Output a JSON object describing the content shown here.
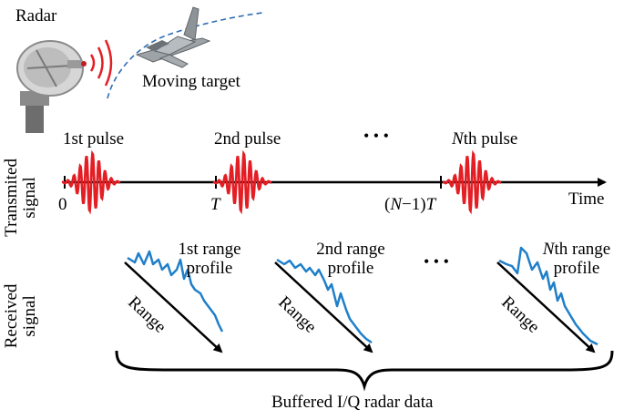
{
  "labels": {
    "radar": "Radar",
    "moving_target": "Moving target",
    "pulse1": "1st pulse",
    "pulse2": "2nd pulse",
    "ellipsis_pulses": "• • •",
    "pulseN_letter": "N",
    "pulseN_rest": "th pulse",
    "time": "Time",
    "tick_0": "0",
    "tick_T": "T",
    "tick_N_open": "(",
    "tick_N_letter": "N",
    "tick_N_rest": "−1)",
    "tick_N_T": "T",
    "transmitted_line1": "Transmited",
    "transmitted_line2": "signal",
    "received_line1": "Received",
    "received_line2": "signal",
    "profile1_line1": "1st range",
    "profile1_line2": "profile",
    "profile2_line1": "2nd range",
    "profile2_line2": "profile",
    "ellipsis_profiles": "• • •",
    "profileN_letter": "N",
    "profileN_rest": "th range",
    "profileN_line2": "profile",
    "range": "Range",
    "buffered": "Buffered I/Q radar data"
  },
  "colors": {
    "pulse": "#e31e24",
    "profile": "#1f7fc9",
    "axis": "#000000",
    "trajectory": "#2f6db3"
  },
  "icons": {
    "radar": "radar-dish-icon",
    "target": "fighter-jet-icon",
    "waves": "radio-waves-icon"
  }
}
